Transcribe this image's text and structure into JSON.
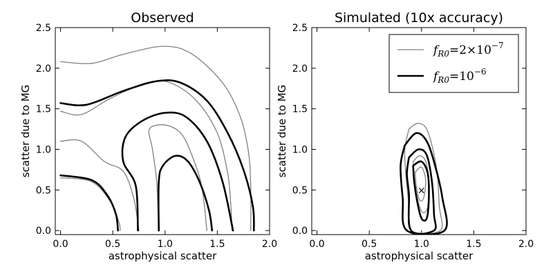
{
  "chart_data": [
    {
      "type": "contour",
      "title": "Observed",
      "xlabel": "astrophysical scatter",
      "ylabel": "scatter due to MG",
      "xlim": [
        -0.05,
        2.0
      ],
      "ylim": [
        -0.05,
        2.5
      ],
      "xticks": [
        "0.0",
        "0.5",
        "1.0",
        "1.5",
        "2.0"
      ],
      "yticks": [
        "0.0",
        "0.5",
        "1.0",
        "1.5",
        "2.0",
        "2.5"
      ],
      "colors": {
        "gray": "#808080",
        "black": "#000000"
      },
      "series": [
        {
          "ref": "fR0_2e-7",
          "contours": [
            [
              [
                0.0,
                2.08
              ],
              [
                0.3,
                2.06
              ],
              [
                0.6,
                2.17
              ],
              [
                0.98,
                2.27
              ],
              [
                1.25,
                2.18
              ],
              [
                1.55,
                1.82
              ],
              [
                1.72,
                1.4
              ],
              [
                1.8,
                0.95
              ],
              [
                1.82,
                0.5
              ],
              [
                1.82,
                0.0
              ]
            ],
            [
              [
                0.0,
                1.47
              ],
              [
                0.2,
                1.43
              ],
              [
                0.48,
                1.63
              ],
              [
                0.82,
                1.82
              ],
              [
                1.05,
                1.82
              ],
              [
                1.3,
                1.6
              ],
              [
                1.5,
                1.2
              ],
              [
                1.6,
                0.7
              ],
              [
                1.63,
                0.3
              ],
              [
                1.64,
                0.0
              ]
            ],
            [
              [
                0.0,
                1.1
              ],
              [
                0.2,
                1.1
              ],
              [
                0.42,
                0.85
              ],
              [
                0.6,
                0.73
              ],
              [
                0.7,
                0.4
              ],
              [
                0.75,
                0.0
              ]
            ],
            [
              [
                0.0,
                0.65
              ],
              [
                0.3,
                0.6
              ],
              [
                0.48,
                0.35
              ],
              [
                0.56,
                0.1
              ],
              [
                0.57,
                0.0
              ]
            ],
            [
              [
                0.94,
                0.0
              ],
              [
                0.92,
                0.6
              ],
              [
                0.88,
                1.0
              ],
              [
                0.85,
                1.25
              ],
              [
                1.0,
                1.3
              ],
              [
                1.15,
                1.2
              ],
              [
                1.25,
                0.95
              ],
              [
                1.35,
                0.55
              ],
              [
                1.4,
                0.0
              ]
            ]
          ]
        },
        {
          "ref": "fR0_1e-6",
          "contours": [
            [
              [
                0.0,
                1.57
              ],
              [
                0.25,
                1.55
              ],
              [
                0.6,
                1.72
              ],
              [
                0.92,
                1.84
              ],
              [
                1.15,
                1.82
              ],
              [
                1.4,
                1.6
              ],
              [
                1.6,
                1.2
              ],
              [
                1.75,
                0.75
              ],
              [
                1.84,
                0.3
              ],
              [
                1.85,
                0.0
              ]
            ],
            [
              [
                0.0,
                0.68
              ],
              [
                0.3,
                0.62
              ],
              [
                0.45,
                0.43
              ],
              [
                0.53,
                0.2
              ],
              [
                0.55,
                0.0
              ]
            ],
            [
              [
                0.74,
                0.0
              ],
              [
                0.72,
                0.55
              ],
              [
                0.6,
                0.85
              ],
              [
                0.62,
                1.15
              ],
              [
                0.78,
                1.35
              ],
              [
                1.0,
                1.45
              ],
              [
                1.2,
                1.4
              ],
              [
                1.4,
                1.1
              ],
              [
                1.55,
                0.6
              ],
              [
                1.65,
                0.0
              ]
            ],
            [
              [
                0.94,
                0.0
              ],
              [
                0.94,
                0.6
              ],
              [
                0.98,
                0.8
              ],
              [
                1.1,
                0.92
              ],
              [
                1.22,
                0.85
              ],
              [
                1.33,
                0.6
              ],
              [
                1.42,
                0.25
              ],
              [
                1.45,
                0.0
              ]
            ]
          ]
        }
      ]
    },
    {
      "type": "contour",
      "title": "Simulated (10x accuracy)",
      "xlabel": "astrophysical scatter",
      "ylabel": "scatter due to MG",
      "xlim": [
        -0.05,
        2.0
      ],
      "ylim": [
        -0.05,
        2.5
      ],
      "xticks": [
        "0.0",
        "0.5",
        "1.0",
        "1.5",
        "2.0"
      ],
      "yticks": [
        "0.0",
        "0.5",
        "1.0",
        "1.5",
        "2.0",
        "2.5"
      ],
      "marker": {
        "x": 1.0,
        "y": 0.5,
        "symbol": "×"
      },
      "legend": {
        "position": "top-right",
        "entries": [
          {
            "ref": "fR0_2e-7",
            "sym": "f",
            "sub": "R0",
            "eq": "=2",
            "times": "×10",
            "exp": "−7"
          },
          {
            "ref": "fR0_1e-6",
            "sym": "f",
            "sub": "R0",
            "eq": "=10",
            "times": "",
            "exp": "−6"
          }
        ]
      },
      "series": [
        {
          "ref": "fR0_2e-7",
          "contours": [
            [
              [
                0.88,
                1.25
              ],
              [
                0.96,
                1.32
              ],
              [
                1.04,
                1.27
              ],
              [
                1.1,
                1.05
              ],
              [
                1.15,
                0.7
              ],
              [
                1.17,
                0.3
              ],
              [
                1.18,
                0.0
              ],
              [
                0.9,
                0.0
              ],
              [
                0.88,
                0.3
              ],
              [
                0.85,
                0.7
              ],
              [
                0.84,
                1.0
              ],
              [
                0.88,
                1.25
              ]
            ],
            [
              [
                0.92,
                0.85
              ],
              [
                0.98,
                0.92
              ],
              [
                1.04,
                0.85
              ],
              [
                1.07,
                0.6
              ],
              [
                1.06,
                0.3
              ],
              [
                1.02,
                0.22
              ],
              [
                0.98,
                0.3
              ],
              [
                0.94,
                0.55
              ],
              [
                0.92,
                0.85
              ]
            ],
            [
              [
                0.94,
                0.72
              ],
              [
                1.0,
                0.78
              ],
              [
                1.04,
                0.62
              ],
              [
                1.02,
                0.4
              ],
              [
                0.98,
                0.38
              ],
              [
                0.95,
                0.55
              ],
              [
                0.94,
                0.72
              ]
            ]
          ]
        },
        {
          "ref": "fR0_1e-6",
          "contours": [
            [
              [
                0.84,
                1.05
              ],
              [
                0.95,
                1.2
              ],
              [
                1.05,
                1.1
              ],
              [
                1.13,
                0.8
              ],
              [
                1.2,
                0.4
              ],
              [
                1.22,
                0.0
              ],
              [
                0.86,
                0.0
              ],
              [
                0.82,
                0.4
              ],
              [
                0.8,
                0.8
              ],
              [
                0.84,
                1.05
              ]
            ],
            [
              [
                0.88,
                0.9
              ],
              [
                0.97,
                1.0
              ],
              [
                1.05,
                0.93
              ],
              [
                1.1,
                0.6
              ],
              [
                1.12,
                0.2
              ],
              [
                1.12,
                0.0
              ],
              [
                0.9,
                0.0
              ],
              [
                0.88,
                0.45
              ],
              [
                0.86,
                0.7
              ],
              [
                0.88,
                0.9
              ]
            ],
            [
              [
                0.92,
                0.8
              ],
              [
                1.0,
                0.85
              ],
              [
                1.06,
                0.7
              ],
              [
                1.07,
                0.4
              ],
              [
                1.05,
                0.15
              ],
              [
                1.0,
                0.15
              ],
              [
                0.96,
                0.35
              ],
              [
                0.93,
                0.6
              ],
              [
                0.92,
                0.8
              ]
            ]
          ]
        }
      ]
    }
  ]
}
